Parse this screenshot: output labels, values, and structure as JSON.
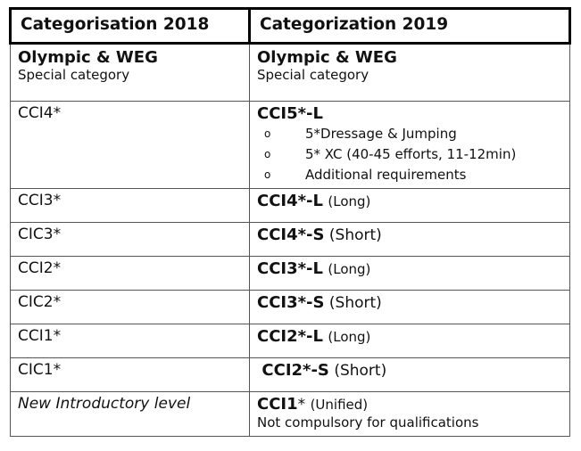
{
  "header": {
    "col1": "Categorisation 2018",
    "col2": "Categorization 2019"
  },
  "olympic": {
    "left_title": "Olympic & WEG",
    "left_sub": "Special category",
    "right_title": "Olympic & WEG",
    "right_sub": "Special category"
  },
  "rows": [
    {
      "old": "CCI4*",
      "new_code": "CCI5*-L",
      "new_suffix": "",
      "bullets": [
        "5*Dressage & Jumping",
        "5* XC (40-45 efforts, 11-12min)",
        "Additional requirements"
      ]
    },
    {
      "old": "CCI3*",
      "new_code": "CCI4*-L",
      "new_suffix": "(Long)"
    },
    {
      "old": "CIC3*",
      "new_code": "CCI4*-S",
      "new_suffix": "(Short)"
    },
    {
      "old": "CCI2*",
      "new_code": "CCI3*-L",
      "new_suffix": "(Long)"
    },
    {
      "old": "CIC2*",
      "new_code": "CCI3*-S",
      "new_suffix": "(Short)"
    },
    {
      "old": "CCI1*",
      "new_code": "CCI2*-L",
      "new_suffix": "(Long)"
    },
    {
      "old": "CIC1*",
      "new_code": "CCI2*-S",
      "new_suffix": "(Short)"
    },
    {
      "old": "New Introductory level",
      "new_code": "CCI1",
      "new_star": "*",
      "new_suffix": "(Unified)",
      "note": "Not compulsory for qualifications"
    }
  ],
  "bullet_marker": "o"
}
